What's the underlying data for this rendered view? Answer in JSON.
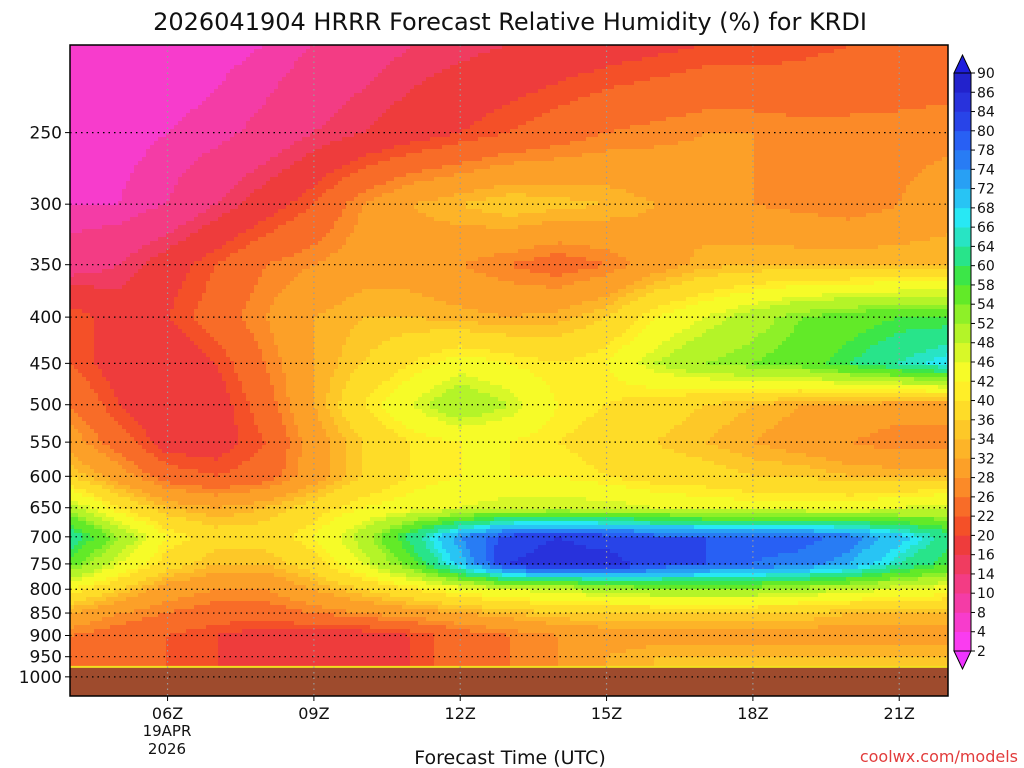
{
  "chart_data": {
    "type": "heatmap",
    "title": "2026041904 HRRR Forecast Relative Humidity (%) for KRDI",
    "xlabel": "Forecast Time (UTC)",
    "ylabel": "",
    "credit": "coolwx.com/models",
    "date_label": {
      "line1": "19APR",
      "line2": "2026"
    },
    "x_unit": "forecast hours (init 2026-04-19 04Z)",
    "xlim": [
      0,
      18
    ],
    "x_ticks": [
      {
        "value": 2,
        "label": "06Z"
      },
      {
        "value": 5,
        "label": "09Z"
      },
      {
        "value": 8,
        "label": "12Z"
      },
      {
        "value": 11,
        "label": "15Z"
      },
      {
        "value": 14,
        "label": "18Z"
      },
      {
        "value": 17,
        "label": "21Z"
      }
    ],
    "y_scale": "log-pressure (hPa, increasing downward)",
    "ylim": [
      200,
      1050
    ],
    "y_ticks": [
      250,
      300,
      350,
      400,
      450,
      500,
      550,
      600,
      650,
      700,
      750,
      800,
      850,
      900,
      950,
      1000
    ],
    "ground_pressure": 975,
    "grid": true,
    "x": [
      0,
      1,
      2,
      3,
      4,
      5,
      6,
      7,
      8,
      9,
      10,
      11,
      12,
      13,
      14,
      15,
      16,
      17,
      18
    ],
    "pressure_levels": [
      200,
      250,
      300,
      350,
      400,
      450,
      500,
      550,
      600,
      650,
      700,
      750,
      800,
      850,
      900,
      950
    ],
    "rh_values": [
      [
        5,
        5,
        6,
        7,
        8,
        10,
        12,
        14,
        15,
        16,
        17,
        18,
        19,
        20,
        20,
        21,
        22,
        23,
        24
      ],
      [
        6,
        7,
        8,
        9,
        11,
        14,
        16,
        18,
        20,
        22,
        24,
        26,
        27,
        28,
        28,
        27,
        27,
        27,
        27
      ],
      [
        8,
        8,
        10,
        14,
        18,
        22,
        28,
        32,
        34,
        36,
        35,
        34,
        32,
        30,
        28,
        27,
        26,
        28,
        30
      ],
      [
        12,
        14,
        18,
        22,
        26,
        28,
        30,
        30,
        28,
        26,
        24,
        26,
        30,
        33,
        34,
        34,
        34,
        34,
        34
      ],
      [
        22,
        18,
        20,
        24,
        28,
        32,
        34,
        34,
        33,
        32,
        33,
        36,
        42,
        46,
        50,
        54,
        56,
        58,
        58
      ],
      [
        22,
        18,
        16,
        20,
        26,
        32,
        36,
        40,
        44,
        42,
        40,
        42,
        48,
        52,
        54,
        56,
        60,
        64,
        68
      ],
      [
        26,
        20,
        16,
        18,
        24,
        32,
        40,
        46,
        52,
        48,
        42,
        40,
        38,
        36,
        34,
        32,
        32,
        30,
        30
      ],
      [
        30,
        24,
        18,
        18,
        22,
        30,
        36,
        40,
        42,
        42,
        40,
        38,
        36,
        34,
        32,
        30,
        28,
        26,
        26
      ],
      [
        36,
        30,
        24,
        22,
        24,
        30,
        36,
        40,
        42,
        42,
        42,
        40,
        38,
        38,
        36,
        36,
        34,
        34,
        34
      ],
      [
        50,
        40,
        34,
        32,
        34,
        38,
        42,
        44,
        46,
        48,
        48,
        48,
        46,
        44,
        44,
        44,
        44,
        46,
        48
      ],
      [
        64,
        52,
        42,
        38,
        38,
        42,
        50,
        62,
        74,
        82,
        84,
        82,
        80,
        80,
        80,
        80,
        76,
        70,
        62
      ],
      [
        56,
        46,
        38,
        34,
        34,
        38,
        46,
        56,
        70,
        84,
        86,
        86,
        82,
        80,
        78,
        76,
        72,
        64,
        58
      ],
      [
        42,
        36,
        30,
        28,
        28,
        32,
        36,
        40,
        44,
        46,
        48,
        50,
        52,
        52,
        52,
        50,
        48,
        46,
        44
      ],
      [
        32,
        28,
        26,
        24,
        24,
        26,
        28,
        30,
        32,
        34,
        36,
        36,
        36,
        36,
        36,
        36,
        34,
        34,
        34
      ],
      [
        26,
        24,
        22,
        20,
        18,
        18,
        18,
        20,
        24,
        26,
        28,
        30,
        30,
        30,
        30,
        30,
        30,
        30,
        30
      ],
      [
        24,
        22,
        22,
        20,
        18,
        18,
        18,
        20,
        24,
        26,
        28,
        32,
        34,
        34,
        34,
        34,
        34,
        34,
        34
      ]
    ],
    "colorbar": {
      "levels": [
        2,
        4,
        8,
        10,
        14,
        16,
        20,
        22,
        26,
        28,
        32,
        34,
        36,
        40,
        42,
        46,
        48,
        52,
        54,
        58,
        60,
        64,
        66,
        68,
        72,
        74,
        78,
        80,
        84,
        86,
        90
      ],
      "colors": [
        "#fa3cf0",
        "#f73ccc",
        "#f43ca6",
        "#f33c84",
        "#f03c60",
        "#ee3c3c",
        "#f45028",
        "#f86c28",
        "#fb8a28",
        "#fca028",
        "#fdb428",
        "#fdc828",
        "#fedc28",
        "#ffee28",
        "#f6fb28",
        "#d8f828",
        "#b4f428",
        "#8ef028",
        "#62ea28",
        "#3ce648",
        "#28e48a",
        "#28e4c4",
        "#28e8f4",
        "#28c4f4",
        "#28a0f4",
        "#287cf4",
        "#2860f4",
        "#2844e8",
        "#2832dc",
        "#2222cc"
      ],
      "under_color": "#ee33ff",
      "over_color": "#1e1edd"
    },
    "ground_color": "#9e4b2d"
  }
}
